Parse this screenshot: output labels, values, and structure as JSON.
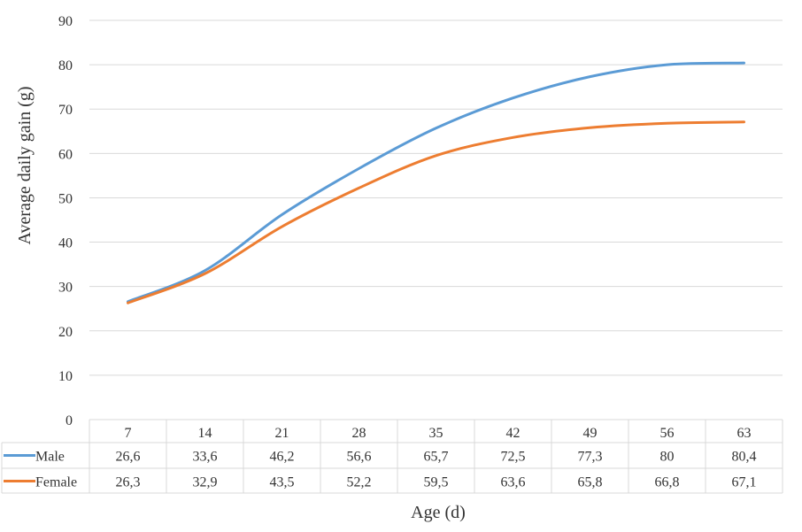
{
  "chart_data": {
    "type": "line",
    "title": "",
    "xlabel": "Age (d)",
    "ylabel": "Average daily gain (g)",
    "ylim": [
      0,
      90
    ],
    "yticks": [
      "0",
      "10",
      "20",
      "30",
      "40",
      "50",
      "60",
      "70",
      "80",
      "90"
    ],
    "categories": [
      "7",
      "14",
      "21",
      "28",
      "35",
      "42",
      "49",
      "56",
      "63"
    ],
    "series": [
      {
        "name": "Male",
        "color": "#5B9BD5",
        "values": [
          26.6,
          33.6,
          46.2,
          56.6,
          65.7,
          72.5,
          77.3,
          80,
          80.4
        ],
        "labels": [
          "26,6",
          "33,6",
          "46,2",
          "56,6",
          "65,7",
          "72,5",
          "77,3",
          "80",
          "80,4"
        ]
      },
      {
        "name": "Female",
        "color": "#ED7D31",
        "values": [
          26.3,
          32.9,
          43.5,
          52.2,
          59.5,
          63.6,
          65.8,
          66.8,
          67.1
        ],
        "labels": [
          "26,3",
          "32,9",
          "43,5",
          "52,2",
          "59,5",
          "63,6",
          "65,8",
          "66,8",
          "67,1"
        ]
      }
    ],
    "grid": true,
    "legend": "data-table",
    "data_table": true
  }
}
